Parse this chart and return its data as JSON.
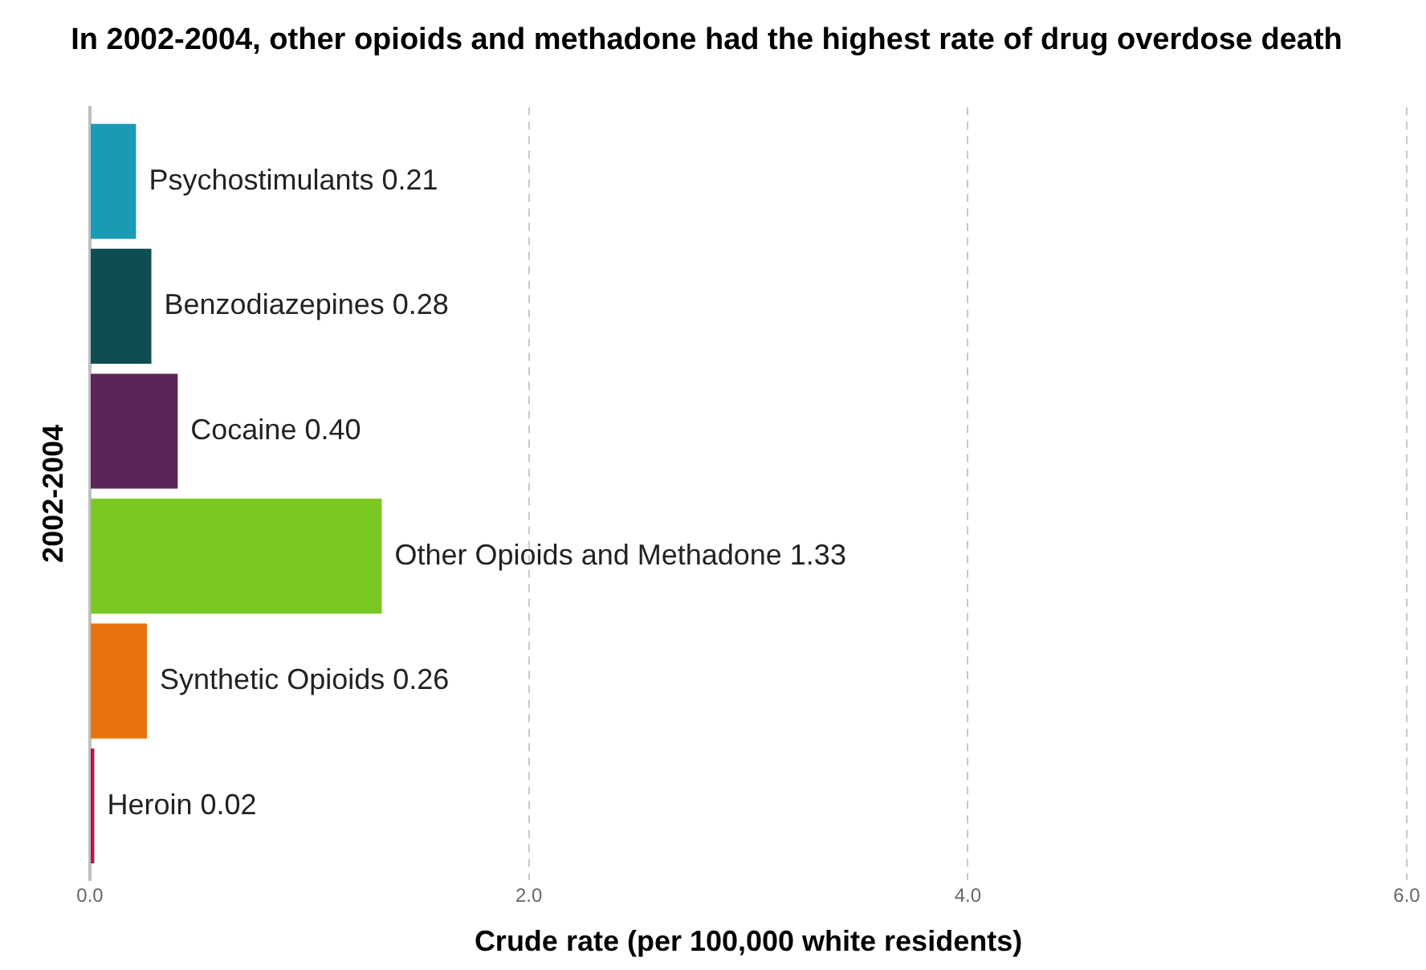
{
  "chart_data": {
    "type": "bar",
    "orientation": "horizontal",
    "title": "In 2002-2004, other opioids and methadone had the highest rate of drug overdose death",
    "xlabel": "Crude rate (per 100,000 white residents)",
    "categories": [
      "2002-2004"
    ],
    "series": [
      {
        "name": "Psychostimulants",
        "color": "#1b9ab5",
        "values": [
          0.21
        ],
        "value_labels": [
          "0.21"
        ]
      },
      {
        "name": "Benzodiazepines",
        "color": "#0e4d51",
        "values": [
          0.28
        ],
        "value_labels": [
          "0.28"
        ]
      },
      {
        "name": "Cocaine",
        "color": "#5c2458",
        "values": [
          0.4
        ],
        "value_labels": [
          "0.40"
        ]
      },
      {
        "name": "Other Opioids and Methadone",
        "color": "#7ac922",
        "values": [
          1.33
        ],
        "value_labels": [
          "1.33"
        ]
      },
      {
        "name": "Synthetic Opioids",
        "color": "#e8720c",
        "values": [
          0.26
        ],
        "value_labels": [
          "0.26"
        ]
      },
      {
        "name": "Heroin",
        "color": "#b0164a",
        "values": [
          0.02
        ],
        "value_labels": [
          "0.02"
        ]
      }
    ],
    "xlim": [
      0,
      6
    ],
    "xticks": [
      {
        "value": 0,
        "label": "0.0"
      },
      {
        "value": 2,
        "label": "2.0"
      },
      {
        "value": 4,
        "label": "4.0"
      },
      {
        "value": 6,
        "label": "6.0"
      }
    ],
    "grid": "x",
    "legend": false
  }
}
